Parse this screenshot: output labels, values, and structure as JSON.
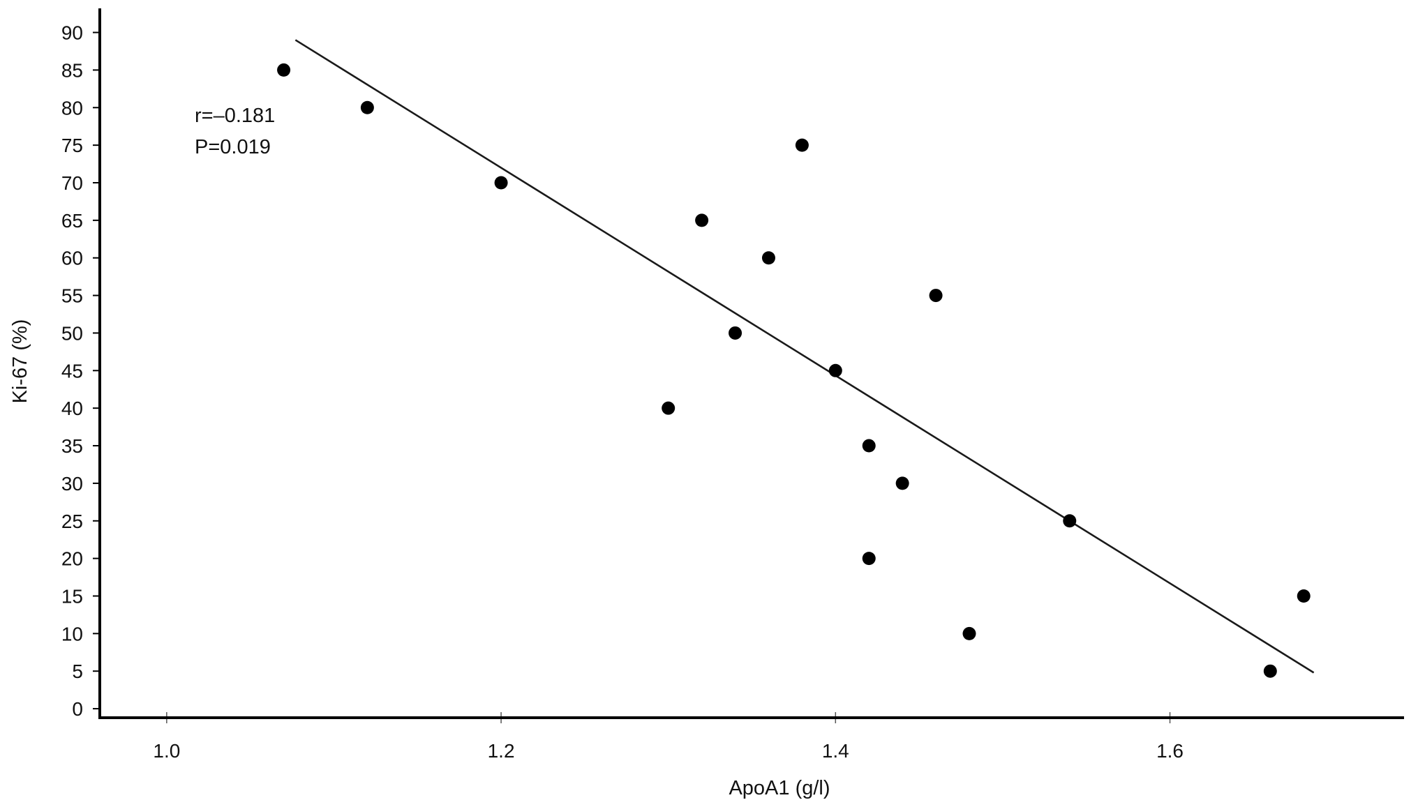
{
  "chart_data": {
    "type": "scatter",
    "title": "",
    "xlabel": "ApoA1 (g/l)",
    "ylabel": "Ki-67 (%)",
    "xlim": [
      0.96,
      1.74
    ],
    "ylim": [
      -1.2,
      92
    ],
    "x_ticks": [
      1.0,
      1.2,
      1.4,
      1.6
    ],
    "x_tick_labels": [
      "1.0",
      "1.2",
      "1.4",
      "1.6"
    ],
    "y_ticks": [
      0,
      5,
      10,
      15,
      20,
      25,
      30,
      35,
      40,
      45,
      50,
      55,
      60,
      65,
      70,
      75,
      80,
      85,
      90
    ],
    "y_tick_labels": [
      "0",
      "5",
      "10",
      "15",
      "20",
      "25",
      "30",
      "35",
      "40",
      "45",
      "50",
      "55",
      "60",
      "65",
      "70",
      "75",
      "80",
      "85",
      "90"
    ],
    "grid": false,
    "legend": "none",
    "annotations": [
      "r=–0.181",
      "P=0.019"
    ],
    "points": [
      {
        "x": 1.07,
        "y": 85
      },
      {
        "x": 1.12,
        "y": 80
      },
      {
        "x": 1.2,
        "y": 70
      },
      {
        "x": 1.3,
        "y": 40
      },
      {
        "x": 1.32,
        "y": 65
      },
      {
        "x": 1.34,
        "y": 50
      },
      {
        "x": 1.36,
        "y": 60
      },
      {
        "x": 1.38,
        "y": 75
      },
      {
        "x": 1.4,
        "y": 45
      },
      {
        "x": 1.42,
        "y": 35
      },
      {
        "x": 1.42,
        "y": 20
      },
      {
        "x": 1.44,
        "y": 30
      },
      {
        "x": 1.46,
        "y": 55
      },
      {
        "x": 1.48,
        "y": 10
      },
      {
        "x": 1.54,
        "y": 25
      },
      {
        "x": 1.66,
        "y": 5
      },
      {
        "x": 1.68,
        "y": 15
      }
    ],
    "fit_line": {
      "x": [
        1.077,
        1.686
      ],
      "y": [
        89,
        4.8
      ]
    },
    "colors": {
      "points": "#000000",
      "line": "#1a1a1a",
      "axis": "#000000"
    }
  }
}
